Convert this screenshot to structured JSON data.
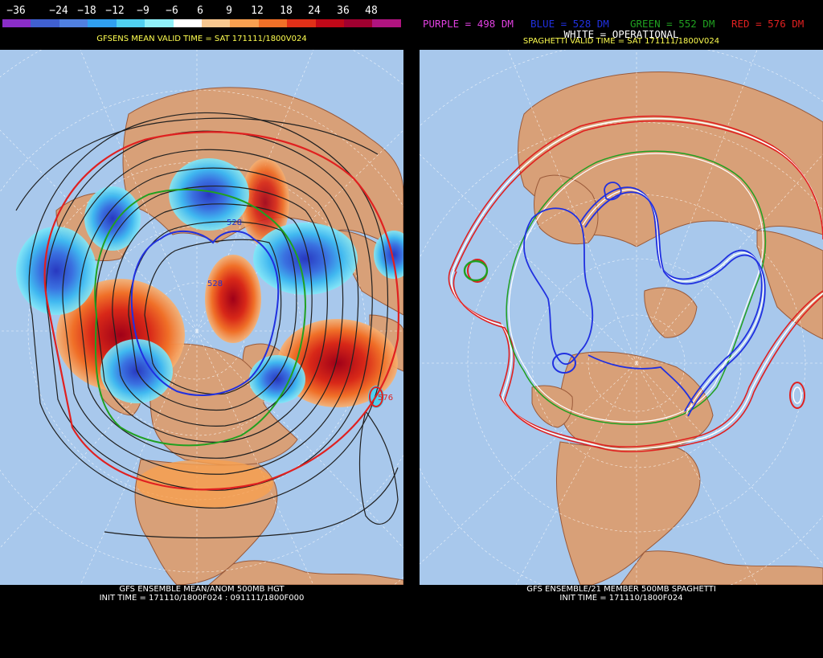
{
  "left": {
    "legend_ticks": [
      "−36",
      "−24",
      "−18",
      "−12",
      "−9",
      "−6",
      "6",
      "9",
      "12",
      "18",
      "24",
      "36",
      "48"
    ],
    "legend_colors": [
      "#8a2dc8",
      "#4060d0",
      "#5080e0",
      "#30a0f0",
      "#50d0f0",
      "#90f0f8",
      "#ffffff",
      "#f8c890",
      "#f8a050",
      "#f07028",
      "#e03018",
      "#c00818",
      "#a00030",
      "#b01480"
    ],
    "top_title": "GFSENS MEAN VALID TIME = SAT 171111/1800V024",
    "caption_line1": "GFS ENSEMBLE MEAN/ANOM 500MB HGT",
    "caption_line2": "INIT TIME = 171110/1800F024 : 091111/1800F000",
    "contour_labels": [
      "528",
      "528",
      "576"
    ]
  },
  "right": {
    "legend": [
      {
        "text": "PURPLE = 498 DM",
        "color": "#e040e0"
      },
      {
        "text": "BLUE = 528 DM",
        "color": "#2030e0"
      },
      {
        "text": "GREEN = 552 DM",
        "color": "#20a020"
      },
      {
        "text": "RED = 576 DM",
        "color": "#e02020"
      }
    ],
    "white_operational": "WHITE = OPERATIONAL",
    "top_title": "SPAGHETTI VALID TIME = SAT 171111/1800V024",
    "caption_line1": "GFS ENSEMBLE/21 MEMBER 500MB SPAGHETTI",
    "caption_line2": "INIT TIME = 171110/1800F024"
  },
  "colors": {
    "ocean": "#a8c8ec",
    "land": "#d8a078",
    "coast": "#9a5a3a"
  }
}
